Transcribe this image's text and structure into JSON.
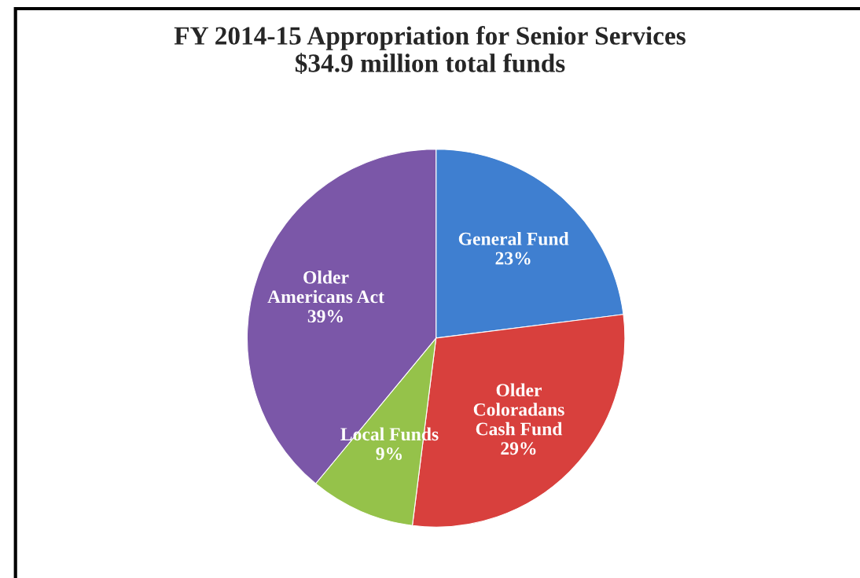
{
  "chart_data": {
    "type": "pie",
    "title": "FY 2014-15 Appropriation for Senior Services\n$34.9 million total funds",
    "categories": [
      "General Fund",
      "Older\nColoradans\nCash Fund",
      "Local Funds",
      "Older\nAmericans Act"
    ],
    "values": [
      23,
      29,
      9,
      39
    ],
    "value_labels": [
      "23%",
      "29%",
      "9%",
      "39%"
    ],
    "colors": [
      "#3f7fd0",
      "#d8403d",
      "#95c24a",
      "#7b57a8"
    ]
  }
}
